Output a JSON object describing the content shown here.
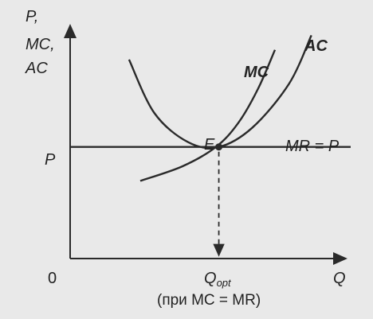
{
  "chart_data": {
    "type": "line",
    "title": "",
    "axes": {
      "y_label_lines": [
        "P,",
        "MC,",
        "AC"
      ],
      "x_label": "Q",
      "origin_label": "0",
      "y_tick_label": "P"
    },
    "series": [
      {
        "name": "MC",
        "x": [
          0.25,
          0.4,
          0.52,
          0.6,
          0.67,
          0.73
        ],
        "y": [
          0.32,
          0.38,
          0.46,
          0.56,
          0.7,
          0.86
        ]
      },
      {
        "name": "AC",
        "x": [
          0.21,
          0.3,
          0.42,
          0.53,
          0.65,
          0.78,
          0.86
        ],
        "y": [
          0.82,
          0.6,
          0.48,
          0.46,
          0.54,
          0.72,
          0.92
        ]
      },
      {
        "name": "MR = P",
        "x": [
          0.0,
          1.0
        ],
        "y": [
          0.46,
          0.46
        ]
      }
    ],
    "point": {
      "label": "E",
      "x": 0.53,
      "y": 0.46
    },
    "q_opt": {
      "label_main": "Q",
      "label_sub": "opt",
      "note": "(при MC = MR)"
    },
    "colors": {
      "curve": "#2a2a2a",
      "axis": "#2a2a2a",
      "background": "#e9e9e9"
    }
  }
}
